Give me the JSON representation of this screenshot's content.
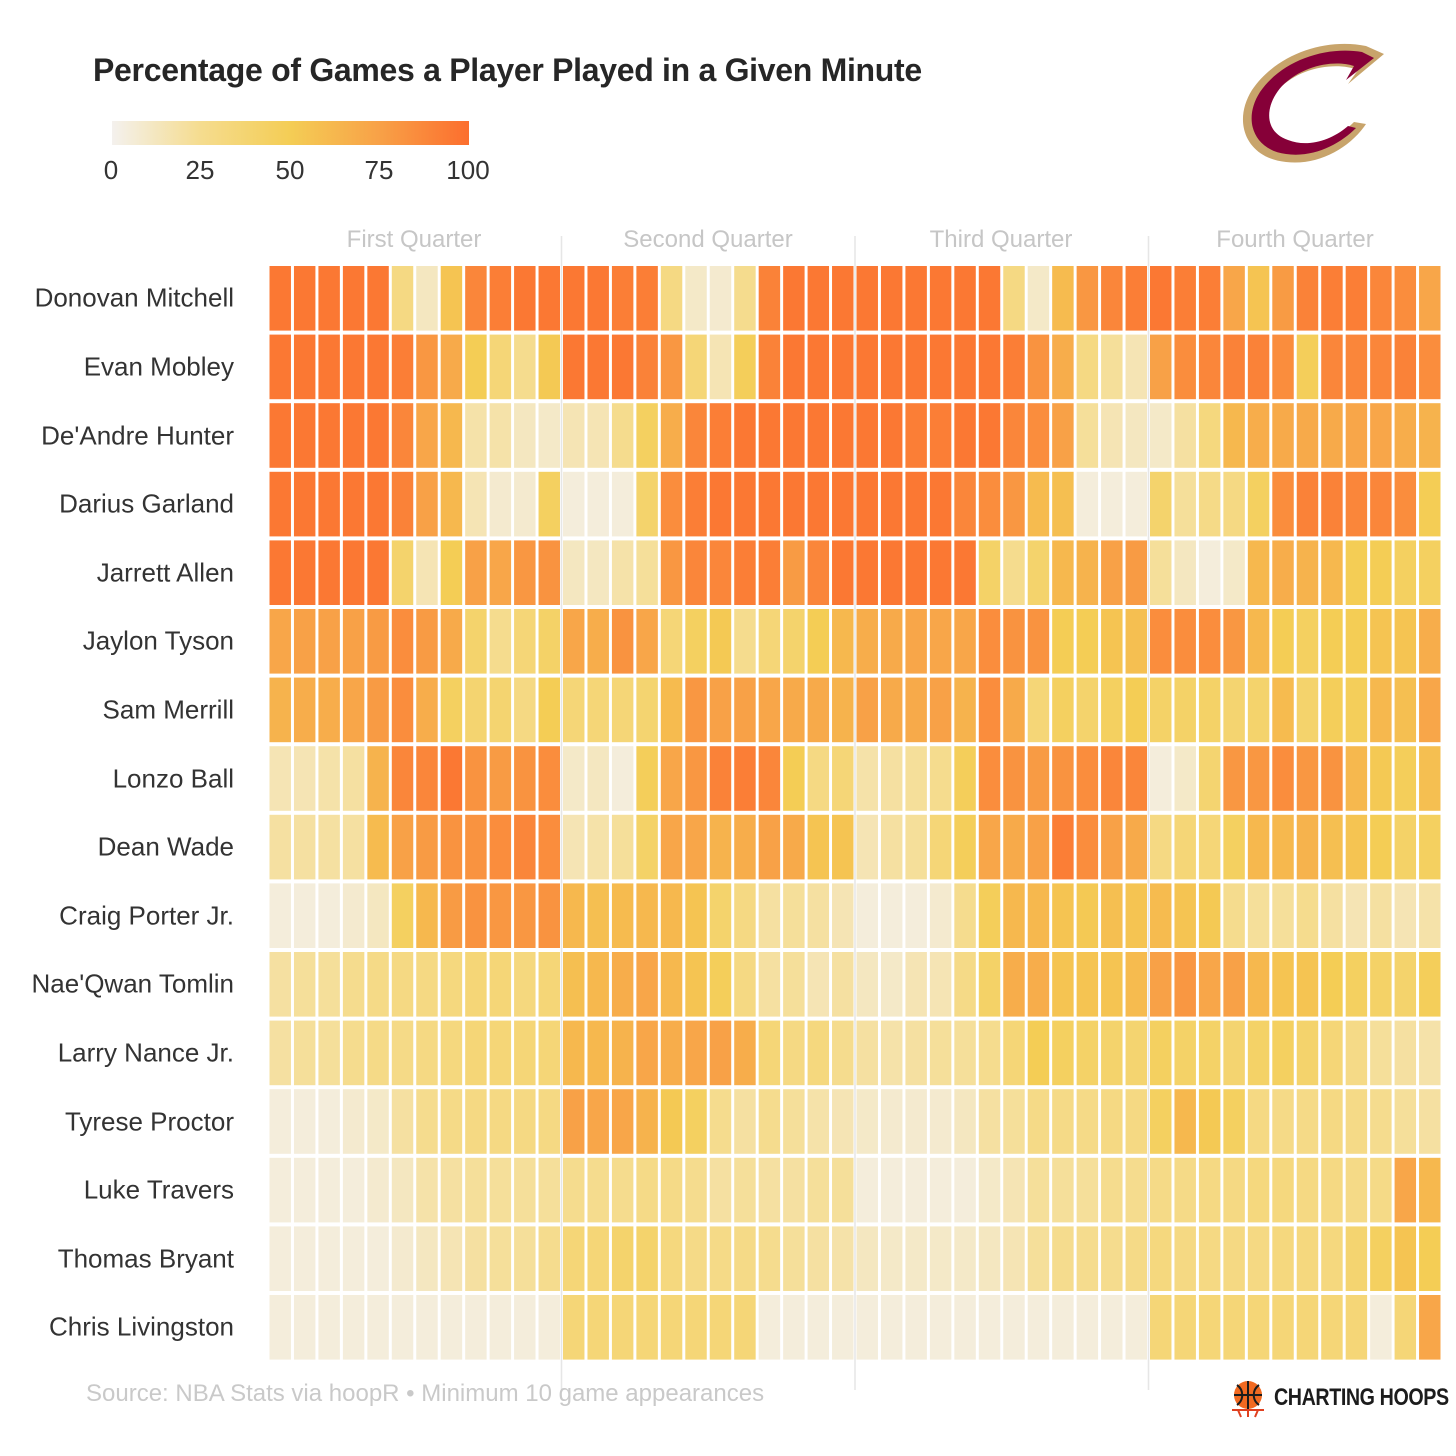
{
  "chart_data": {
    "type": "heatmap",
    "title": "Percentage of Games a Player Played in a Given Minute",
    "legend": {
      "ticks": [
        "0",
        "25",
        "50",
        "75",
        "100"
      ],
      "range": [
        0,
        100
      ],
      "placement": "top-left",
      "colors": [
        "#f4f1ee",
        "#f5dc8e",
        "#f4cd55",
        "#f8a147",
        "#fc6e2e"
      ]
    },
    "quarters": [
      "First Quarter",
      "Second Quarter",
      "Third Quarter",
      "Fourth Quarter"
    ],
    "minutes_per_quarter": 12,
    "players": [
      {
        "name": "Donovan Mitchell",
        "values": [
          95,
          95,
          95,
          95,
          95,
          30,
          12,
          55,
          88,
          92,
          95,
          95,
          95,
          95,
          92,
          92,
          30,
          10,
          8,
          25,
          90,
          95,
          95,
          95,
          95,
          95,
          95,
          95,
          95,
          95,
          30,
          10,
          60,
          80,
          88,
          92,
          95,
          92,
          92,
          72,
          55,
          78,
          90,
          92,
          92,
          88,
          85,
          72
        ]
      },
      {
        "name": "Evan Mobley",
        "values": [
          95,
          95,
          95,
          95,
          95,
          92,
          80,
          70,
          50,
          35,
          25,
          52,
          95,
          95,
          95,
          90,
          80,
          35,
          15,
          48,
          90,
          95,
          95,
          95,
          95,
          95,
          95,
          95,
          95,
          95,
          92,
          82,
          68,
          30,
          22,
          15,
          75,
          85,
          88,
          90,
          90,
          85,
          48,
          88,
          88,
          88,
          90,
          85
        ]
      },
      {
        "name": "De'Andre Hunter",
        "values": [
          95,
          95,
          95,
          95,
          95,
          88,
          72,
          62,
          18,
          18,
          12,
          10,
          15,
          15,
          25,
          45,
          68,
          88,
          92,
          95,
          95,
          95,
          95,
          95,
          95,
          95,
          92,
          92,
          95,
          95,
          88,
          85,
          75,
          22,
          15,
          12,
          10,
          20,
          32,
          62,
          68,
          70,
          70,
          70,
          72,
          72,
          68,
          65
        ]
      },
      {
        "name": "Darius Garland",
        "values": [
          95,
          95,
          95,
          95,
          95,
          90,
          75,
          62,
          15,
          8,
          8,
          45,
          5,
          5,
          5,
          40,
          85,
          92,
          95,
          95,
          95,
          95,
          95,
          95,
          95,
          95,
          95,
          95,
          88,
          85,
          80,
          60,
          58,
          5,
          5,
          5,
          40,
          22,
          28,
          30,
          45,
          85,
          90,
          90,
          88,
          88,
          85,
          50
        ]
      },
      {
        "name": "Jarrett Allen",
        "values": [
          95,
          95,
          95,
          95,
          95,
          40,
          15,
          50,
          75,
          72,
          80,
          82,
          12,
          12,
          18,
          22,
          80,
          88,
          88,
          92,
          92,
          78,
          88,
          95,
          95,
          95,
          95,
          95,
          95,
          42,
          25,
          40,
          62,
          65,
          75,
          78,
          22,
          12,
          5,
          10,
          62,
          68,
          65,
          62,
          50,
          50,
          45,
          45
        ]
      },
      {
        "name": "Jaylon Tyson",
        "values": [
          72,
          75,
          75,
          75,
          78,
          85,
          78,
          70,
          40,
          25,
          35,
          42,
          72,
          68,
          82,
          72,
          35,
          45,
          52,
          25,
          35,
          40,
          50,
          62,
          68,
          70,
          72,
          72,
          72,
          85,
          82,
          82,
          50,
          50,
          55,
          58,
          85,
          85,
          85,
          80,
          62,
          50,
          45,
          50,
          50,
          55,
          55,
          68
        ]
      },
      {
        "name": "Sam Merrill",
        "values": [
          65,
          68,
          68,
          72,
          78,
          85,
          68,
          45,
          38,
          38,
          30,
          50,
          35,
          35,
          35,
          38,
          60,
          80,
          75,
          75,
          72,
          70,
          70,
          65,
          75,
          70,
          70,
          75,
          65,
          85,
          70,
          35,
          45,
          40,
          45,
          50,
          42,
          42,
          42,
          38,
          40,
          60,
          40,
          48,
          48,
          62,
          58,
          72
        ]
      },
      {
        "name": "Lonzo Ball",
        "values": [
          15,
          15,
          18,
          20,
          65,
          88,
          88,
          95,
          82,
          78,
          82,
          85,
          10,
          12,
          5,
          48,
          72,
          80,
          90,
          92,
          88,
          50,
          30,
          35,
          18,
          20,
          22,
          25,
          48,
          85,
          82,
          78,
          82,
          85,
          88,
          88,
          5,
          10,
          38,
          80,
          80,
          85,
          80,
          82,
          62,
          52,
          48,
          58
        ]
      },
      {
        "name": "Dean Wade",
        "values": [
          20,
          20,
          20,
          20,
          60,
          75,
          78,
          82,
          82,
          85,
          88,
          85,
          15,
          18,
          22,
          42,
          72,
          72,
          65,
          68,
          75,
          70,
          55,
          55,
          15,
          20,
          22,
          35,
          48,
          72,
          70,
          75,
          92,
          85,
          75,
          70,
          30,
          35,
          35,
          45,
          62,
          62,
          65,
          58,
          55,
          50,
          42,
          45
        ]
      },
      {
        "name": "Craig Porter Jr.",
        "values": [
          5,
          5,
          5,
          8,
          12,
          45,
          62,
          78,
          82,
          80,
          80,
          82,
          62,
          58,
          60,
          62,
          62,
          55,
          40,
          30,
          20,
          22,
          20,
          15,
          5,
          5,
          5,
          8,
          25,
          48,
          62,
          62,
          55,
          52,
          58,
          55,
          60,
          55,
          52,
          25,
          22,
          22,
          25,
          20,
          15,
          20,
          15,
          18
        ]
      },
      {
        "name": "Nae'Qwan Tomlin",
        "values": [
          20,
          22,
          22,
          25,
          28,
          30,
          30,
          32,
          35,
          35,
          32,
          35,
          58,
          62,
          68,
          72,
          62,
          55,
          48,
          30,
          20,
          22,
          15,
          20,
          12,
          10,
          15,
          15,
          28,
          42,
          68,
          68,
          55,
          55,
          55,
          60,
          75,
          80,
          72,
          75,
          62,
          55,
          55,
          50,
          45,
          42,
          40,
          48
        ]
      },
      {
        "name": "Larry Nance Jr.",
        "values": [
          20,
          22,
          22,
          25,
          28,
          28,
          30,
          32,
          35,
          35,
          35,
          35,
          62,
          62,
          65,
          72,
          68,
          72,
          75,
          68,
          35,
          30,
          32,
          25,
          20,
          18,
          20,
          22,
          22,
          25,
          35,
          50,
          45,
          42,
          40,
          38,
          45,
          42,
          42,
          38,
          42,
          45,
          40,
          35,
          28,
          22,
          20,
          18
        ]
      },
      {
        "name": "Tyrese Proctor",
        "values": [
          5,
          5,
          5,
          8,
          10,
          20,
          25,
          28,
          30,
          30,
          30,
          30,
          75,
          72,
          72,
          65,
          52,
          45,
          25,
          20,
          25,
          22,
          18,
          15,
          10,
          8,
          8,
          8,
          12,
          20,
          22,
          28,
          28,
          28,
          30,
          30,
          45,
          62,
          52,
          45,
          30,
          28,
          28,
          30,
          28,
          25,
          22,
          20
        ]
      },
      {
        "name": "Luke Travers",
        "values": [
          5,
          5,
          5,
          5,
          8,
          12,
          18,
          20,
          22,
          22,
          22,
          22,
          25,
          25,
          25,
          28,
          28,
          25,
          20,
          22,
          20,
          20,
          22,
          22,
          5,
          5,
          5,
          5,
          5,
          10,
          15,
          22,
          22,
          22,
          25,
          25,
          28,
          28,
          30,
          30,
          32,
          32,
          30,
          30,
          28,
          28,
          72,
          62
        ]
      },
      {
        "name": "Thomas Bryant",
        "values": [
          5,
          5,
          5,
          5,
          5,
          8,
          12,
          15,
          20,
          22,
          22,
          25,
          35,
          35,
          40,
          40,
          32,
          28,
          28,
          28,
          25,
          22,
          20,
          18,
          12,
          10,
          10,
          10,
          10,
          12,
          15,
          22,
          25,
          25,
          25,
          28,
          32,
          30,
          30,
          30,
          30,
          32,
          32,
          32,
          38,
          45,
          55,
          50
        ]
      },
      {
        "name": "Chris Livingston",
        "values": [
          5,
          5,
          5,
          5,
          5,
          5,
          5,
          5,
          5,
          5,
          5,
          5,
          35,
          35,
          35,
          35,
          35,
          35,
          35,
          35,
          5,
          5,
          5,
          5,
          5,
          5,
          5,
          5,
          5,
          5,
          5,
          5,
          5,
          5,
          5,
          5,
          35,
          35,
          35,
          35,
          35,
          35,
          35,
          35,
          35,
          5,
          35,
          72
        ]
      }
    ]
  },
  "source": "Source: NBA Stats via hoopR • Minimum 10 game appearances",
  "brand": {
    "label": "CHARTING HOOPS"
  }
}
